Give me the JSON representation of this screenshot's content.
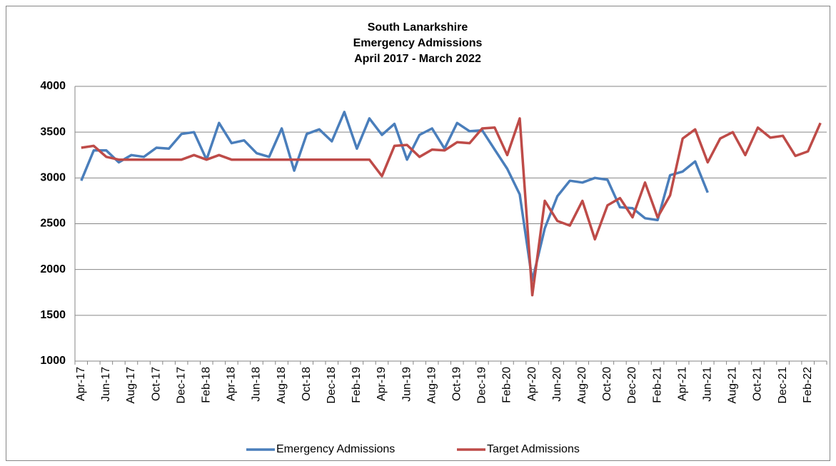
{
  "chart_data": {
    "type": "line",
    "title": [
      "South Lanarkshire",
      "Emergency Admissions",
      "April 2017 - March 2022"
    ],
    "categories": [
      "Apr-17",
      null,
      "Jun-17",
      null,
      "Aug-17",
      null,
      "Oct-17",
      null,
      "Dec-17",
      null,
      "Feb-18",
      null,
      "Apr-18",
      null,
      "Jun-18",
      null,
      "Aug-18",
      null,
      "Oct-18",
      null,
      "Dec-18",
      null,
      "Feb-19",
      null,
      "Apr-19",
      null,
      "Jun-19",
      null,
      "Aug-19",
      null,
      "Oct-19",
      null,
      "Dec-19",
      null,
      "Feb-20",
      null,
      "Apr-20",
      null,
      "Jun-20",
      null,
      "Aug-20",
      null,
      "Oct-20",
      null,
      "Dec-20",
      null,
      "Feb-21",
      null,
      "Apr-21",
      null,
      "Jun-21",
      null,
      "Aug-21",
      null,
      "Oct-21",
      null,
      "Dec-21",
      null,
      "Feb-22",
      null
    ],
    "series": [
      {
        "name": "Emergency Admissions",
        "color": "#4a7ebb",
        "values": [
          2970,
          3300,
          3300,
          3170,
          3250,
          3230,
          3330,
          3320,
          3480,
          3500,
          3200,
          3600,
          3380,
          3410,
          3270,
          3230,
          3540,
          3080,
          3480,
          3530,
          3400,
          3720,
          3320,
          3650,
          3470,
          3590,
          3200,
          3470,
          3540,
          3320,
          3600,
          3510,
          3520,
          3310,
          3100,
          2820,
          1880,
          2450,
          2800,
          2970,
          2950,
          3000,
          2980,
          2680,
          2670,
          2560,
          2540,
          3030,
          3070,
          3180,
          2840,
          null,
          null,
          null,
          null,
          null,
          null,
          null,
          null,
          null
        ]
      },
      {
        "name": "Target Admissions",
        "color": "#be4b48",
        "values": [
          3330,
          3350,
          3230,
          3200,
          3200,
          3200,
          3200,
          3200,
          3200,
          3250,
          3200,
          3250,
          3200,
          3200,
          3200,
          3200,
          3200,
          3200,
          3200,
          3200,
          3200,
          3200,
          3200,
          3200,
          3020,
          3350,
          3360,
          3230,
          3310,
          3300,
          3390,
          3380,
          3540,
          3550,
          3250,
          3650,
          1720,
          2750,
          2530,
          2480,
          2750,
          2330,
          2700,
          2780,
          2570,
          2950,
          2570,
          2810,
          3430,
          3530,
          3170,
          3430,
          3500,
          3250,
          3550,
          3440,
          3460,
          3240,
          3290,
          3600
        ]
      }
    ],
    "ylim": [
      1000,
      4000
    ],
    "yticks": [
      1000,
      1500,
      2000,
      2500,
      3000,
      3500,
      4000
    ],
    "grid": true,
    "legend": "bottom"
  }
}
